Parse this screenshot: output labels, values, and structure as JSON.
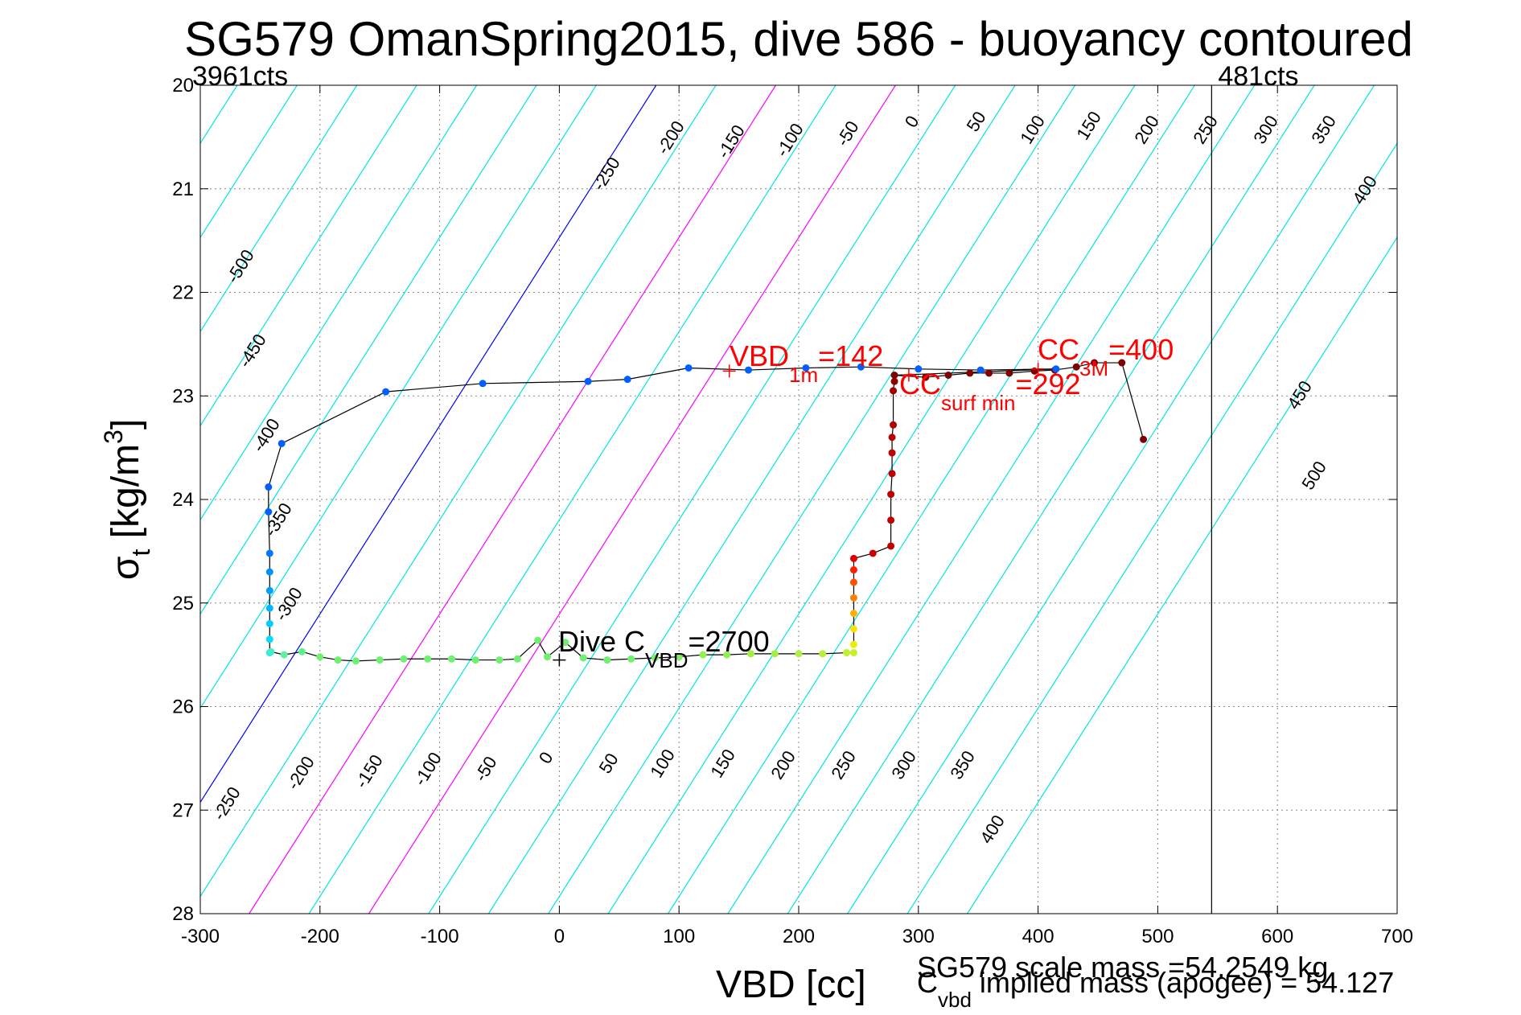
{
  "chart_data": {
    "type": "scatter",
    "title": "SG579 OmanSpring2015, dive 586 - buoyancy contoured",
    "xlabel": "VBD [cc]",
    "ylabel": "σ_t [kg/m^3]",
    "xlim": [
      -300,
      700
    ],
    "ylim": [
      20,
      28
    ],
    "y_reversed": true,
    "grid": true,
    "x_ticks": [
      "-300",
      "-200",
      "-100",
      "0",
      "100",
      "200",
      "300",
      "400",
      "500",
      "600",
      "700"
    ],
    "y_ticks": [
      "20",
      "21",
      "22",
      "23",
      "24",
      "25",
      "26",
      "27",
      "28"
    ],
    "count_labels": [
      {
        "text": "3961cts",
        "vbd": -300
      },
      {
        "text": "481cts",
        "vbd": 545
      }
    ],
    "vbd_limit_line": 545,
    "buoyancy_contours": {
      "spacing": 50,
      "colors": {
        "default": "#00e5e5",
        "zero": "#0000ff",
        "highlight": "#ff00ff"
      },
      "highlight_values": [
        100,
        200
      ],
      "top_labels": [
        "-250",
        "-200",
        "-150",
        "-100",
        "-50",
        "0",
        "50",
        "100",
        "150",
        "200",
        "250",
        "300",
        "350",
        "400"
      ],
      "left_labels": [
        "-500",
        "-450",
        "-400",
        "-350",
        "-300"
      ],
      "bottom_labels": [
        "-250",
        "-200",
        "-150",
        "-100",
        "-50",
        "0",
        "50",
        "100",
        "150",
        "200",
        "250",
        "300",
        "350",
        "400"
      ],
      "right_labels": [
        "450",
        "500"
      ]
    },
    "series": [
      {
        "role": "climb",
        "points": [
          {
            "x": 488,
            "y": 23.42,
            "c": "#800000"
          },
          {
            "x": 470,
            "y": 22.68,
            "c": "#800000"
          },
          {
            "x": 447,
            "y": 22.68,
            "c": "#800000"
          },
          {
            "x": 432,
            "y": 22.72,
            "c": "#800000"
          },
          {
            "x": 414,
            "y": 22.75,
            "c": "#800000"
          },
          {
            "x": 397,
            "y": 22.76,
            "c": "#800000"
          },
          {
            "x": 376,
            "y": 22.78,
            "c": "#800000"
          },
          {
            "x": 359,
            "y": 22.78,
            "c": "#800000"
          },
          {
            "x": 343,
            "y": 22.78,
            "c": "#800000"
          },
          {
            "x": 325,
            "y": 22.8,
            "c": "#800000"
          },
          {
            "x": 306,
            "y": 22.82,
            "c": "#800000"
          },
          {
            "x": 280,
            "y": 22.8,
            "c": "#800000"
          },
          {
            "x": 415,
            "y": 22.74,
            "c": "#0060ff"
          },
          {
            "x": 352,
            "y": 22.75,
            "c": "#0060ff"
          },
          {
            "x": 300,
            "y": 22.74,
            "c": "#0060ff"
          },
          {
            "x": 252,
            "y": 22.72,
            "c": "#0060ff"
          },
          {
            "x": 206,
            "y": 22.73,
            "c": "#0060ff"
          },
          {
            "x": 158,
            "y": 22.75,
            "c": "#0060ff"
          },
          {
            "x": 108,
            "y": 22.73,
            "c": "#0060ff"
          },
          {
            "x": 57,
            "y": 22.84,
            "c": "#0060ff"
          },
          {
            "x": 24,
            "y": 22.86,
            "c": "#0060ff"
          },
          {
            "x": -64,
            "y": 22.88,
            "c": "#0060ff"
          },
          {
            "x": -145,
            "y": 22.96,
            "c": "#0060ff"
          },
          {
            "x": -232,
            "y": 23.46,
            "c": "#0060ff"
          },
          {
            "x": -243,
            "y": 23.88,
            "c": "#0060ff"
          },
          {
            "x": -243,
            "y": 24.12,
            "c": "#0060ff"
          },
          {
            "x": -242,
            "y": 24.52,
            "c": "#0078ff"
          },
          {
            "x": -242,
            "y": 24.7,
            "c": "#0090ff"
          },
          {
            "x": -242,
            "y": 24.88,
            "c": "#00a0ff"
          },
          {
            "x": -242,
            "y": 25.05,
            "c": "#00b8ff"
          },
          {
            "x": -242,
            "y": 25.2,
            "c": "#00ccff"
          },
          {
            "x": -242,
            "y": 25.35,
            "c": "#00ddff"
          },
          {
            "x": -242,
            "y": 25.48,
            "c": "#20ecf0"
          }
        ]
      },
      {
        "role": "apogee",
        "points": [
          {
            "x": -241,
            "y": 25.47,
            "c": "#40f0c0"
          },
          {
            "x": -230,
            "y": 25.5,
            "c": "#60f0a0"
          },
          {
            "x": -215,
            "y": 25.47,
            "c": "#60f090"
          },
          {
            "x": -200,
            "y": 25.52,
            "c": "#70f070"
          },
          {
            "x": -185,
            "y": 25.55,
            "c": "#70f070"
          },
          {
            "x": -170,
            "y": 25.56,
            "c": "#70f070"
          },
          {
            "x": -150,
            "y": 25.55,
            "c": "#70f070"
          },
          {
            "x": -130,
            "y": 25.54,
            "c": "#70f070"
          },
          {
            "x": -110,
            "y": 25.54,
            "c": "#70f070"
          },
          {
            "x": -90,
            "y": 25.54,
            "c": "#70f070"
          },
          {
            "x": -70,
            "y": 25.55,
            "c": "#70f070"
          },
          {
            "x": -50,
            "y": 25.55,
            "c": "#70f070"
          },
          {
            "x": -35,
            "y": 25.54,
            "c": "#70f070"
          },
          {
            "x": -18,
            "y": 25.36,
            "c": "#70f070"
          },
          {
            "x": -10,
            "y": 25.52,
            "c": "#70f070"
          },
          {
            "x": 5,
            "y": 25.38,
            "c": "#70f070"
          },
          {
            "x": 20,
            "y": 25.53,
            "c": "#70f070"
          },
          {
            "x": 40,
            "y": 25.55,
            "c": "#70f070"
          },
          {
            "x": 60,
            "y": 25.54,
            "c": "#70f070"
          },
          {
            "x": 80,
            "y": 25.53,
            "c": "#80f060"
          },
          {
            "x": 100,
            "y": 25.52,
            "c": "#80f060"
          },
          {
            "x": 120,
            "y": 25.5,
            "c": "#90f050"
          },
          {
            "x": 140,
            "y": 25.5,
            "c": "#90f050"
          },
          {
            "x": 160,
            "y": 25.49,
            "c": "#a0f040"
          },
          {
            "x": 180,
            "y": 25.49,
            "c": "#a0f040"
          },
          {
            "x": 200,
            "y": 25.49,
            "c": "#b0f040"
          },
          {
            "x": 220,
            "y": 25.49,
            "c": "#b8f038"
          },
          {
            "x": 240,
            "y": 25.48,
            "c": "#c0f030"
          },
          {
            "x": 246,
            "y": 25.48,
            "c": "#c8f028"
          }
        ]
      },
      {
        "role": "dive",
        "points": [
          {
            "x": 246,
            "y": 25.4,
            "c": "#e8f000"
          },
          {
            "x": 246,
            "y": 25.25,
            "c": "#ffe000"
          },
          {
            "x": 246,
            "y": 25.1,
            "c": "#ffb000"
          },
          {
            "x": 246,
            "y": 24.95,
            "c": "#ff8000"
          },
          {
            "x": 246,
            "y": 24.8,
            "c": "#ff5000"
          },
          {
            "x": 246,
            "y": 24.68,
            "c": "#ff2000"
          },
          {
            "x": 246,
            "y": 24.57,
            "c": "#e00000"
          },
          {
            "x": 262,
            "y": 24.52,
            "c": "#d00000"
          },
          {
            "x": 277,
            "y": 24.45,
            "c": "#c00000"
          },
          {
            "x": 277,
            "y": 24.2,
            "c": "#c00000"
          },
          {
            "x": 277,
            "y": 23.95,
            "c": "#c00000"
          },
          {
            "x": 278,
            "y": 23.75,
            "c": "#c00000"
          },
          {
            "x": 278,
            "y": 23.55,
            "c": "#c00000"
          },
          {
            "x": 278,
            "y": 23.4,
            "c": "#b80000"
          },
          {
            "x": 279,
            "y": 23.28,
            "c": "#b00000"
          },
          {
            "x": 279,
            "y": 22.95,
            "c": "#a00000"
          },
          {
            "x": 280,
            "y": 22.86,
            "c": "#900000"
          }
        ]
      }
    ],
    "annotations": [
      {
        "marker": {
          "x": 142,
          "y": 22.76
        },
        "parts": [
          "VBD",
          "1m",
          "=142"
        ],
        "color": "#ff0000"
      },
      {
        "marker": {
          "x": 400,
          "y": 22.74
        },
        "parts": [
          "CC",
          "3M",
          "=400"
        ],
        "color": "#ff0000"
      },
      {
        "marker": {
          "x": 292,
          "y": 22.8
        },
        "parts": [
          "CC",
          "surf min",
          "=292"
        ],
        "color": "#ff0000"
      },
      {
        "marker": {
          "x": 0,
          "y": 25.55
        },
        "parts": [
          "Dive C",
          "VBD",
          "=2700"
        ],
        "color": "#000000"
      }
    ],
    "footer": {
      "scale_mass": "SG579 scale mass =54.2549 kg",
      "implied_mass_parts": [
        "C",
        "vbd",
        " implied mass (apogee) = 54.127"
      ]
    }
  }
}
